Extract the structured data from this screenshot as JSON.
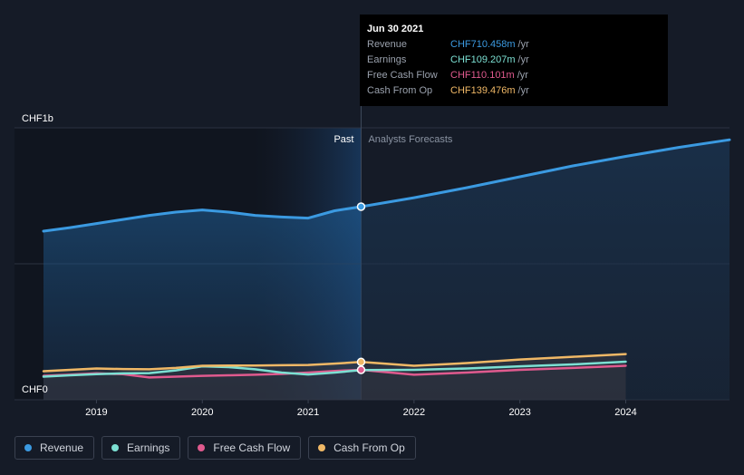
{
  "tooltip": {
    "date": "Jun 30 2021",
    "rows": [
      {
        "label": "Revenue",
        "value": "CHF710.458m",
        "unit": "/yr",
        "color": "#3b9ae1"
      },
      {
        "label": "Earnings",
        "value": "CHF109.207m",
        "unit": "/yr",
        "color": "#7ce0d3"
      },
      {
        "label": "Free Cash Flow",
        "value": "CHF110.101m",
        "unit": "/yr",
        "color": "#e05a8e"
      },
      {
        "label": "Cash From Op",
        "value": "CHF139.476m",
        "unit": "/yr",
        "color": "#f0b866"
      }
    ]
  },
  "legend": [
    {
      "label": "Revenue",
      "color": "#3b9ae1"
    },
    {
      "label": "Earnings",
      "color": "#7ce0d3"
    },
    {
      "label": "Free Cash Flow",
      "color": "#e05a8e"
    },
    {
      "label": "Cash From Op",
      "color": "#f0b866"
    }
  ],
  "chart_data": {
    "type": "line",
    "y_axis_labels": [
      "CHF1b",
      "CHF0"
    ],
    "ylim": [
      0,
      1000
    ],
    "xlim": [
      2018.5,
      2024.98
    ],
    "x_ticks": [
      "2019",
      "2020",
      "2021",
      "2022",
      "2023",
      "2024"
    ],
    "x_tick_values": [
      2019,
      2020,
      2021,
      2022,
      2023,
      2024
    ],
    "past_label": "Past",
    "forecast_label": "Analysts Forecasts",
    "divider_x": 2021.5,
    "series": [
      {
        "name": "Revenue",
        "color": "#3b9ae1",
        "x": [
          2018.5,
          2018.75,
          2019.0,
          2019.25,
          2019.5,
          2019.75,
          2020.0,
          2020.25,
          2020.5,
          2020.75,
          2021.0,
          2021.25,
          2021.5,
          2022.0,
          2022.5,
          2023.0,
          2023.5,
          2024.0,
          2024.5,
          2024.98
        ],
        "values": [
          620,
          633,
          648,
          663,
          678,
          690,
          698,
          690,
          678,
          672,
          668,
          695,
          710,
          743,
          780,
          820,
          860,
          895,
          928,
          956
        ]
      },
      {
        "name": "Earnings",
        "color": "#7ce0d3",
        "x": [
          2018.5,
          2018.75,
          2019.0,
          2019.25,
          2019.5,
          2019.75,
          2020.0,
          2020.25,
          2020.5,
          2020.75,
          2021.0,
          2021.25,
          2021.5,
          2022.0,
          2022.5,
          2023.0,
          2023.5,
          2024.0
        ],
        "values": [
          85,
          90,
          94,
          97,
          98,
          108,
          123,
          120,
          112,
          100,
          93,
          100,
          109,
          110,
          115,
          123,
          130,
          140
        ]
      },
      {
        "name": "Free Cash Flow",
        "color": "#e05a8e",
        "x": [
          2018.5,
          2018.75,
          2019.0,
          2019.25,
          2019.5,
          2019.75,
          2020.0,
          2020.25,
          2020.5,
          2020.75,
          2021.0,
          2021.25,
          2021.5,
          2022.0,
          2022.5,
          2023.0,
          2023.5,
          2024.0
        ],
        "values": [
          88,
          92,
          97,
          94,
          82,
          85,
          88,
          90,
          92,
          95,
          100,
          106,
          110,
          92,
          100,
          110,
          117,
          125
        ]
      },
      {
        "name": "Cash From Op",
        "color": "#f0b866",
        "x": [
          2018.5,
          2018.75,
          2019.0,
          2019.25,
          2019.5,
          2019.75,
          2020.0,
          2020.25,
          2020.5,
          2020.75,
          2021.0,
          2021.25,
          2021.5,
          2022.0,
          2022.5,
          2023.0,
          2023.5,
          2024.0
        ],
        "values": [
          105,
          110,
          115,
          113,
          112,
          117,
          125,
          126,
          126,
          127,
          128,
          133,
          139,
          125,
          135,
          148,
          158,
          168
        ]
      }
    ],
    "marker_x": 2021.5,
    "markers": [
      {
        "series": "Revenue",
        "value": 710
      },
      {
        "series": "Cash From Op",
        "value": 139
      },
      {
        "series": "Free Cash Flow",
        "value": 110
      }
    ]
  }
}
